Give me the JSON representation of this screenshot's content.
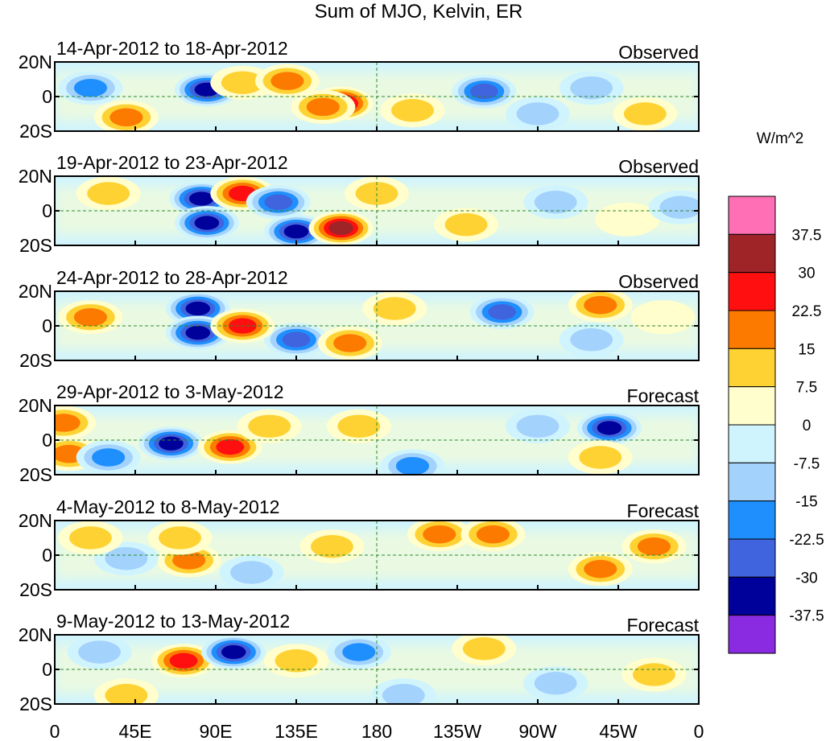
{
  "chart_data": {
    "type": "heatmap",
    "title": "Sum of MJO, Kelvin, ER",
    "units": "W/m^2",
    "x_ticks": [
      "0",
      "45E",
      "90E",
      "135E",
      "180",
      "135W",
      "90W",
      "45W",
      "0"
    ],
    "x_range": [
      0,
      360
    ],
    "y_ticks": [
      "20N",
      "0",
      "20S"
    ],
    "y_range": [
      -20,
      20
    ],
    "colorbar": {
      "levels": [
        "37.5",
        "30",
        "22.5",
        "15",
        "7.5",
        "0",
        "-7.5",
        "-15",
        "-22.5",
        "-30",
        "-37.5"
      ],
      "colors": [
        "#ff6fb5",
        "#9e2428",
        "#ff0f0f",
        "#fd7a00",
        "#fed232",
        "#fffecc",
        "#d0f4fd",
        "#a3d2fd",
        "#1f8ffe",
        "#3f64dd",
        "#00009a",
        "#8a2be2"
      ]
    },
    "panels": [
      {
        "period": "14-Apr-2012 to 18-Apr-2012",
        "kind": "Observed",
        "anomalies": [
          {
            "lon": 85,
            "lat": 4,
            "value": -37.5
          },
          {
            "lon": 20,
            "lat": 5,
            "value": -22.5
          },
          {
            "lon": 160,
            "lat": -4,
            "value": 37.5
          },
          {
            "lon": 150,
            "lat": -6,
            "value": 22.5
          },
          {
            "lon": 105,
            "lat": 8,
            "value": 15
          },
          {
            "lon": 240,
            "lat": 3,
            "value": -30
          },
          {
            "lon": 40,
            "lat": -12,
            "value": 22.5
          },
          {
            "lon": 130,
            "lat": 9,
            "value": 22.5
          },
          {
            "lon": 300,
            "lat": 5,
            "value": -15
          },
          {
            "lon": 200,
            "lat": -8,
            "value": 15
          },
          {
            "lon": 330,
            "lat": -10,
            "value": 15
          },
          {
            "lon": 270,
            "lat": -10,
            "value": -15
          }
        ]
      },
      {
        "period": "19-Apr-2012 to 23-Apr-2012",
        "kind": "Observed",
        "anomalies": [
          {
            "lon": 82,
            "lat": 7,
            "value": -37.5
          },
          {
            "lon": 85,
            "lat": -7,
            "value": -37.5
          },
          {
            "lon": 135,
            "lat": -12,
            "value": -37.5
          },
          {
            "lon": 160,
            "lat": -10,
            "value": 37.5
          },
          {
            "lon": 105,
            "lat": 10,
            "value": 30
          },
          {
            "lon": 125,
            "lat": 5,
            "value": -30
          },
          {
            "lon": 30,
            "lat": 10,
            "value": 15
          },
          {
            "lon": 180,
            "lat": 10,
            "value": 15
          },
          {
            "lon": 280,
            "lat": 5,
            "value": -15
          },
          {
            "lon": 320,
            "lat": -5,
            "value": 7.5
          },
          {
            "lon": 350,
            "lat": 2,
            "value": -15
          },
          {
            "lon": 230,
            "lat": -8,
            "value": 15
          }
        ]
      },
      {
        "period": "24-Apr-2012 to 28-Apr-2012",
        "kind": "Observed",
        "anomalies": [
          {
            "lon": 80,
            "lat": 10,
            "value": -37.5
          },
          {
            "lon": 80,
            "lat": -4,
            "value": -37.5
          },
          {
            "lon": 135,
            "lat": -8,
            "value": -30
          },
          {
            "lon": 105,
            "lat": 0,
            "value": 30
          },
          {
            "lon": 20,
            "lat": 5,
            "value": 22.5
          },
          {
            "lon": 165,
            "lat": -10,
            "value": 22.5
          },
          {
            "lon": 250,
            "lat": 8,
            "value": -30
          },
          {
            "lon": 305,
            "lat": 12,
            "value": 22.5
          },
          {
            "lon": 190,
            "lat": 10,
            "value": 15
          },
          {
            "lon": 300,
            "lat": -8,
            "value": -15
          },
          {
            "lon": 340,
            "lat": 5,
            "value": 7.5
          }
        ]
      },
      {
        "period": "29-Apr-2012 to 3-May-2012",
        "kind": "Forecast",
        "anomalies": [
          {
            "lon": 5,
            "lat": 10,
            "value": 22.5
          },
          {
            "lon": 8,
            "lat": -8,
            "value": 22.5
          },
          {
            "lon": 65,
            "lat": -2,
            "value": -37.5
          },
          {
            "lon": 98,
            "lat": -4,
            "value": 30
          },
          {
            "lon": 310,
            "lat": 7,
            "value": -37.5
          },
          {
            "lon": 30,
            "lat": -10,
            "value": -22.5
          },
          {
            "lon": 120,
            "lat": 8,
            "value": 15
          },
          {
            "lon": 200,
            "lat": -15,
            "value": -22.5
          },
          {
            "lon": 270,
            "lat": 8,
            "value": -15
          },
          {
            "lon": 305,
            "lat": -10,
            "value": 15
          },
          {
            "lon": 170,
            "lat": 8,
            "value": 15
          }
        ]
      },
      {
        "period": "4-May-2012 to 8-May-2012",
        "kind": "Forecast",
        "anomalies": [
          {
            "lon": 75,
            "lat": -3,
            "value": 22.5
          },
          {
            "lon": 70,
            "lat": 10,
            "value": 15
          },
          {
            "lon": 215,
            "lat": 12,
            "value": 22.5
          },
          {
            "lon": 245,
            "lat": 12,
            "value": 22.5
          },
          {
            "lon": 305,
            "lat": -8,
            "value": 22.5
          },
          {
            "lon": 335,
            "lat": 5,
            "value": 22.5
          },
          {
            "lon": 40,
            "lat": -2,
            "value": -15
          },
          {
            "lon": 110,
            "lat": -10,
            "value": -15
          },
          {
            "lon": 155,
            "lat": 5,
            "value": 15
          },
          {
            "lon": 20,
            "lat": 10,
            "value": 15
          }
        ]
      },
      {
        "period": "9-May-2012 to 13-May-2012",
        "kind": "Forecast",
        "anomalies": [
          {
            "lon": 72,
            "lat": 5,
            "value": 30
          },
          {
            "lon": 100,
            "lat": 10,
            "value": -37.5
          },
          {
            "lon": 135,
            "lat": 5,
            "value": 15
          },
          {
            "lon": 170,
            "lat": 10,
            "value": -22.5
          },
          {
            "lon": 240,
            "lat": 12,
            "value": 15
          },
          {
            "lon": 280,
            "lat": -8,
            "value": -15
          },
          {
            "lon": 25,
            "lat": 10,
            "value": -15
          },
          {
            "lon": 335,
            "lat": -3,
            "value": 15
          },
          {
            "lon": 195,
            "lat": -15,
            "value": -15
          },
          {
            "lon": 40,
            "lat": -15,
            "value": 15
          }
        ]
      }
    ]
  }
}
